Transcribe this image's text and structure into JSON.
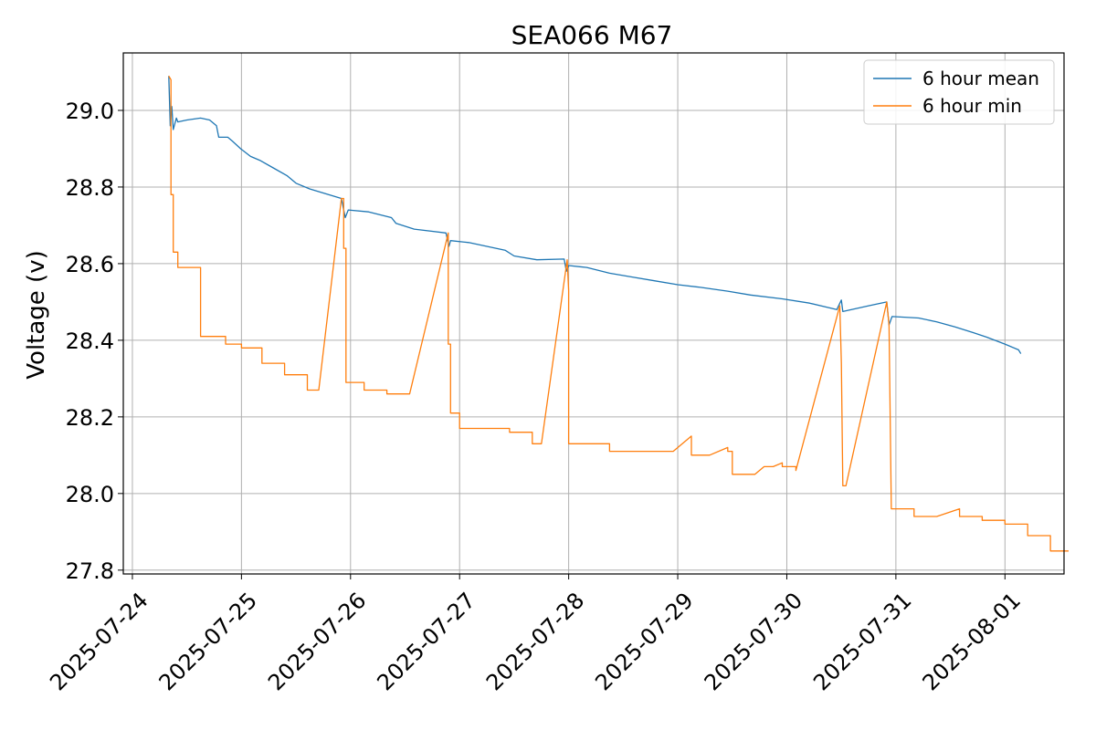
{
  "chart_data": {
    "type": "line",
    "title": "SEA066 M67",
    "xlabel": "",
    "ylabel": "Voltage (v)",
    "x_ticks": [
      "2025-07-24",
      "2025-07-25",
      "2025-07-26",
      "2025-07-27",
      "2025-07-28",
      "2025-07-29",
      "2025-07-30",
      "2025-07-31",
      "2025-08-01"
    ],
    "y_ticks": [
      "27.8",
      "28.0",
      "28.2",
      "28.4",
      "28.6",
      "28.8",
      "29.0"
    ],
    "xlim": [
      "2025-07-23T22:00",
      "2025-08-01T13:00"
    ],
    "ylim": [
      27.79,
      29.15
    ],
    "grid": true,
    "legend": "top-right",
    "colors": {
      "mean": "#1f77b4",
      "min": "#ff7f0e"
    },
    "series": [
      {
        "name": "6 hour mean",
        "color": "#1f77b4",
        "points": [
          [
            "2025-07-24T08:00",
            29.09
          ],
          [
            "2025-07-24T08:20",
            28.96
          ],
          [
            "2025-07-24T08:40",
            29.01
          ],
          [
            "2025-07-24T09:00",
            28.95
          ],
          [
            "2025-07-24T09:40",
            28.98
          ],
          [
            "2025-07-24T10:00",
            28.97
          ],
          [
            "2025-07-24T12:00",
            28.975
          ],
          [
            "2025-07-24T15:00",
            28.98
          ],
          [
            "2025-07-24T17:00",
            28.975
          ],
          [
            "2025-07-24T18:30",
            28.96
          ],
          [
            "2025-07-24T19:00",
            28.93
          ],
          [
            "2025-07-24T21:00",
            28.93
          ],
          [
            "2025-07-24T22:00",
            28.92
          ],
          [
            "2025-07-24T23:50",
            28.9
          ],
          [
            "2025-07-25T02:00",
            28.88
          ],
          [
            "2025-07-25T04:00",
            28.87
          ],
          [
            "2025-07-25T07:00",
            28.85
          ],
          [
            "2025-07-25T10:00",
            28.83
          ],
          [
            "2025-07-25T12:00",
            28.81
          ],
          [
            "2025-07-25T15:00",
            28.795
          ],
          [
            "2025-07-25T22:00",
            28.77
          ],
          [
            "2025-07-25T22:50",
            28.72
          ],
          [
            "2025-07-25T23:30",
            28.74
          ],
          [
            "2025-07-26T04:00",
            28.735
          ],
          [
            "2025-07-26T09:00",
            28.72
          ],
          [
            "2025-07-26T10:00",
            28.705
          ],
          [
            "2025-07-26T14:00",
            28.69
          ],
          [
            "2025-07-26T21:00",
            28.68
          ],
          [
            "2025-07-26T21:40",
            28.645
          ],
          [
            "2025-07-26T22:00",
            28.66
          ],
          [
            "2025-07-27T02:00",
            28.655
          ],
          [
            "2025-07-27T06:00",
            28.645
          ],
          [
            "2025-07-27T10:00",
            28.635
          ],
          [
            "2025-07-27T12:00",
            28.62
          ],
          [
            "2025-07-27T17:00",
            28.61
          ],
          [
            "2025-07-27T23:00",
            28.612
          ],
          [
            "2025-07-27T23:30",
            28.58
          ],
          [
            "2025-07-28T00:00",
            28.595
          ],
          [
            "2025-07-28T04:00",
            28.59
          ],
          [
            "2025-07-28T09:00",
            28.575
          ],
          [
            "2025-07-28T14:00",
            28.565
          ],
          [
            "2025-07-28T19:00",
            28.555
          ],
          [
            "2025-07-29T00:00",
            28.545
          ],
          [
            "2025-07-29T05:00",
            28.538
          ],
          [
            "2025-07-29T11:00",
            28.528
          ],
          [
            "2025-07-29T16:00",
            28.518
          ],
          [
            "2025-07-29T23:00",
            28.508
          ],
          [
            "2025-07-30T05:00",
            28.497
          ],
          [
            "2025-07-30T11:00",
            28.48
          ],
          [
            "2025-07-30T12:00",
            28.505
          ],
          [
            "2025-07-30T12:20",
            28.475
          ],
          [
            "2025-07-30T18:00",
            28.49
          ],
          [
            "2025-07-30T22:00",
            28.5
          ],
          [
            "2025-07-30T22:30",
            28.44
          ],
          [
            "2025-07-30T23:10",
            28.462
          ],
          [
            "2025-07-31T05:00",
            28.458
          ],
          [
            "2025-07-31T09:00",
            28.448
          ],
          [
            "2025-07-31T13:00",
            28.435
          ],
          [
            "2025-07-31T17:00",
            28.42
          ],
          [
            "2025-07-31T20:00",
            28.408
          ],
          [
            "2025-08-01T00:00",
            28.39
          ],
          [
            "2025-08-01T03:00",
            28.375
          ],
          [
            "2025-08-01T03:30",
            28.365
          ]
        ]
      },
      {
        "name": "6 hour min",
        "color": "#ff7f0e",
        "points": [
          [
            "2025-07-24T08:00",
            29.09
          ],
          [
            "2025-07-24T08:30",
            29.08
          ],
          [
            "2025-07-24T08:30",
            28.78
          ],
          [
            "2025-07-24T09:00",
            28.78
          ],
          [
            "2025-07-24T09:00",
            28.63
          ],
          [
            "2025-07-24T10:00",
            28.63
          ],
          [
            "2025-07-24T10:00",
            28.59
          ],
          [
            "2025-07-24T15:00",
            28.59
          ],
          [
            "2025-07-24T15:00",
            28.41
          ],
          [
            "2025-07-24T20:30",
            28.41
          ],
          [
            "2025-07-24T20:30",
            28.39
          ],
          [
            "2025-07-25T00:00",
            28.39
          ],
          [
            "2025-07-25T00:00",
            28.38
          ],
          [
            "2025-07-25T04:30",
            28.38
          ],
          [
            "2025-07-25T04:30",
            28.34
          ],
          [
            "2025-07-25T09:30",
            28.34
          ],
          [
            "2025-07-25T09:30",
            28.31
          ],
          [
            "2025-07-25T14:30",
            28.31
          ],
          [
            "2025-07-25T14:30",
            28.27
          ],
          [
            "2025-07-25T17:00",
            28.27
          ],
          [
            "2025-07-25T22:00",
            28.77
          ],
          [
            "2025-07-25T22:30",
            28.77
          ],
          [
            "2025-07-25T22:30",
            28.64
          ],
          [
            "2025-07-25T23:00",
            28.64
          ],
          [
            "2025-07-25T23:00",
            28.29
          ],
          [
            "2025-07-26T03:00",
            28.29
          ],
          [
            "2025-07-26T03:00",
            28.27
          ],
          [
            "2025-07-26T08:00",
            28.27
          ],
          [
            "2025-07-26T08:00",
            28.26
          ],
          [
            "2025-07-26T13:00",
            28.26
          ],
          [
            "2025-07-26T21:30",
            28.68
          ],
          [
            "2025-07-26T21:30",
            28.39
          ],
          [
            "2025-07-26T22:00",
            28.39
          ],
          [
            "2025-07-26T22:00",
            28.21
          ],
          [
            "2025-07-27T00:00",
            28.21
          ],
          [
            "2025-07-27T00:00",
            28.17
          ],
          [
            "2025-07-27T11:00",
            28.17
          ],
          [
            "2025-07-27T11:00",
            28.16
          ],
          [
            "2025-07-27T16:00",
            28.16
          ],
          [
            "2025-07-27T16:00",
            28.13
          ],
          [
            "2025-07-27T18:00",
            28.13
          ],
          [
            "2025-07-27T23:40",
            28.61
          ],
          [
            "2025-07-28T00:00",
            28.53
          ],
          [
            "2025-07-28T00:00",
            28.13
          ],
          [
            "2025-07-28T09:00",
            28.13
          ],
          [
            "2025-07-28T09:00",
            28.11
          ],
          [
            "2025-07-28T23:00",
            28.11
          ],
          [
            "2025-07-29T03:00",
            28.15
          ],
          [
            "2025-07-29T03:00",
            28.1
          ],
          [
            "2025-07-29T07:00",
            28.1
          ],
          [
            "2025-07-29T11:00",
            28.12
          ],
          [
            "2025-07-29T11:00",
            28.11
          ],
          [
            "2025-07-29T12:00",
            28.11
          ],
          [
            "2025-07-29T12:00",
            28.05
          ],
          [
            "2025-07-29T17:00",
            28.05
          ],
          [
            "2025-07-29T19:00",
            28.07
          ],
          [
            "2025-07-29T21:00",
            28.07
          ],
          [
            "2025-07-29T23:00",
            28.08
          ],
          [
            "2025-07-29T23:00",
            28.07
          ],
          [
            "2025-07-30T02:00",
            28.07
          ],
          [
            "2025-07-30T02:00",
            28.06
          ],
          [
            "2025-07-30T11:40",
            28.49
          ],
          [
            "2025-07-30T12:00",
            28.34
          ],
          [
            "2025-07-30T12:20",
            28.02
          ],
          [
            "2025-07-30T13:00",
            28.02
          ],
          [
            "2025-07-30T22:00",
            28.5
          ],
          [
            "2025-07-30T22:30",
            28.44
          ],
          [
            "2025-07-30T23:00",
            27.96
          ],
          [
            "2025-07-31T04:00",
            27.96
          ],
          [
            "2025-07-31T04:00",
            27.94
          ],
          [
            "2025-07-31T09:00",
            27.94
          ],
          [
            "2025-07-31T14:00",
            27.96
          ],
          [
            "2025-07-31T14:00",
            27.94
          ],
          [
            "2025-07-31T19:00",
            27.94
          ],
          [
            "2025-07-31T19:00",
            27.93
          ],
          [
            "2025-08-01T00:00",
            27.93
          ],
          [
            "2025-08-01T00:00",
            27.92
          ],
          [
            "2025-08-01T05:00",
            27.92
          ],
          [
            "2025-08-01T05:00",
            27.89
          ],
          [
            "2025-08-01T10:00",
            27.89
          ],
          [
            "2025-08-01T10:00",
            27.85
          ],
          [
            "2025-08-01T14:00",
            27.85
          ]
        ]
      }
    ]
  }
}
